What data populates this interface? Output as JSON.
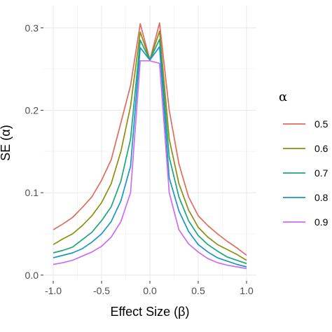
{
  "chart_data": {
    "type": "line",
    "xlabel": "Effect Size (β)",
    "ylabel": "SE (α)",
    "xlim": [
      -1.0,
      1.0
    ],
    "ylim": [
      -0.007,
      0.327
    ],
    "x_ticks": [
      -1.0,
      -0.5,
      0.0,
      0.5,
      1.0
    ],
    "x_tick_labels": [
      "-1.0",
      "-0.5",
      "0.0",
      "0.5",
      "1.0"
    ],
    "y_ticks": [
      0.0,
      0.1,
      0.2,
      0.3
    ],
    "y_tick_labels": [
      "0.0",
      "0.1",
      "0.2",
      "0.3"
    ],
    "grid": true,
    "panel_background": "#ffffff",
    "grid_major_color": "#ebebeb",
    "grid_minor_color": "#f5f5f5",
    "legend": {
      "title": "α",
      "position": "right"
    },
    "x": [
      -1.0,
      -0.9,
      -0.8,
      -0.7,
      -0.6,
      -0.5,
      -0.4,
      -0.3,
      -0.2,
      -0.1,
      0.0,
      0.1,
      0.2,
      0.3,
      0.4,
      0.5,
      0.6,
      0.7,
      0.8,
      0.9,
      1.0
    ],
    "series": [
      {
        "name": "0.5",
        "color": "#e06c5f",
        "values": [
          0.055,
          0.062,
          0.07,
          0.082,
          0.095,
          0.115,
          0.14,
          0.185,
          0.23,
          0.305,
          0.261,
          0.306,
          0.2,
          0.135,
          0.095,
          0.072,
          0.06,
          0.05,
          0.041,
          0.033,
          0.024
        ]
      },
      {
        "name": "0.6",
        "color": "#8a8f12",
        "values": [
          0.037,
          0.044,
          0.05,
          0.06,
          0.072,
          0.088,
          0.111,
          0.15,
          0.205,
          0.295,
          0.261,
          0.296,
          0.165,
          0.111,
          0.079,
          0.058,
          0.046,
          0.037,
          0.031,
          0.025,
          0.018
        ]
      },
      {
        "name": "0.7",
        "color": "#1ea67a",
        "values": [
          0.027,
          0.03,
          0.034,
          0.043,
          0.052,
          0.066,
          0.083,
          0.114,
          0.165,
          0.285,
          0.261,
          0.286,
          0.143,
          0.095,
          0.066,
          0.048,
          0.037,
          0.029,
          0.022,
          0.018,
          0.014
        ]
      },
      {
        "name": "0.8",
        "color": "#1a95c7",
        "values": [
          0.021,
          0.024,
          0.027,
          0.032,
          0.04,
          0.05,
          0.065,
          0.09,
          0.132,
          0.276,
          0.261,
          0.277,
          0.118,
          0.078,
          0.053,
          0.037,
          0.028,
          0.021,
          0.017,
          0.013,
          0.01
        ]
      },
      {
        "name": "0.9",
        "color": "#cc6cf0",
        "values": [
          0.013,
          0.015,
          0.018,
          0.023,
          0.028,
          0.035,
          0.046,
          0.065,
          0.1,
          0.26,
          0.26,
          0.257,
          0.1,
          0.055,
          0.038,
          0.028,
          0.02,
          0.015,
          0.012,
          0.01,
          0.008
        ]
      }
    ]
  }
}
